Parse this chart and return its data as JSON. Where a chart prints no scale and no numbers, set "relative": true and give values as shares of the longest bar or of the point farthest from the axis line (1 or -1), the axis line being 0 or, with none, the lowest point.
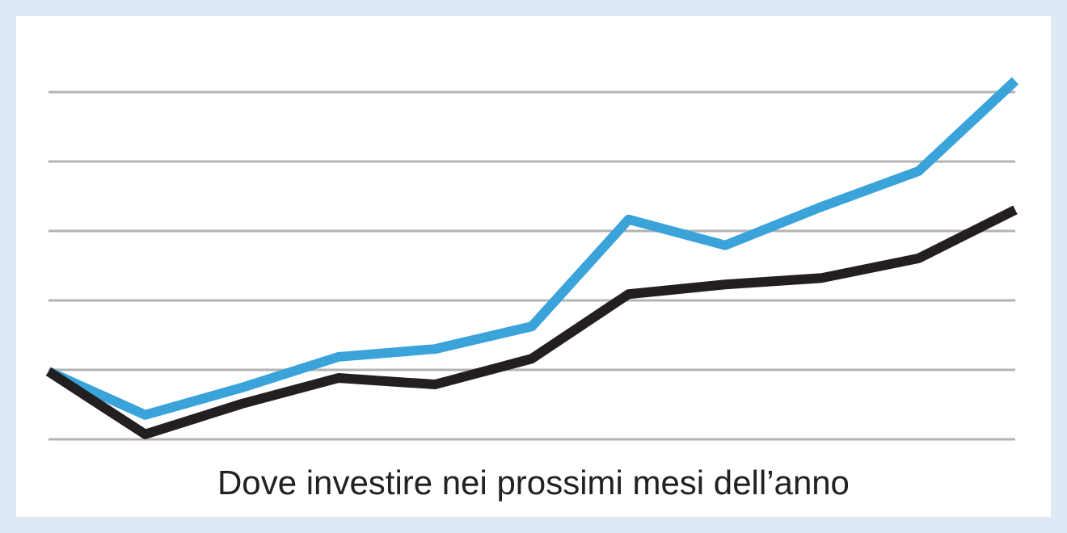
{
  "chart_data": {
    "type": "line",
    "title": "Dove investire nei prossimi mesi dell’anno",
    "relative": true,
    "grid": true,
    "line_style": "solid",
    "categories": [
      null,
      null,
      null,
      null,
      null,
      null,
      null,
      null,
      null,
      null,
      null
    ],
    "series": [
      {
        "color": "#3aa3da",
        "values": [
          0.189,
          0.068,
          0.144,
          0.23,
          0.252,
          0.315,
          0.613,
          0.541,
          0.649,
          0.748,
          1
        ]
      },
      {
        "color": "#231f20",
        "values": [
          0.189,
          0.014,
          0.099,
          0.171,
          0.153,
          0.225,
          0.405,
          0.432,
          0.45,
          0.505,
          0.64
        ]
      }
    ]
  }
}
